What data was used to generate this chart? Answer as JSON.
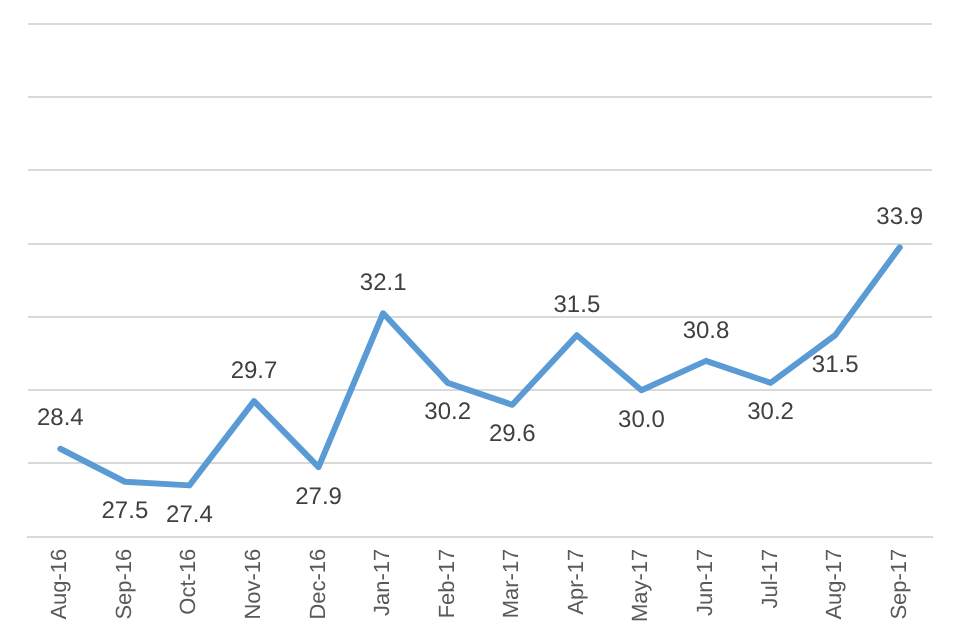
{
  "chart_data": {
    "type": "line",
    "categories": [
      "Aug-16",
      "Sep-16",
      "Oct-16",
      "Nov-16",
      "Dec-16",
      "Jan-17",
      "Feb-17",
      "Mar-17",
      "Apr-17",
      "May-17",
      "Jun-17",
      "Jul-17",
      "Aug-17",
      "Sep-17"
    ],
    "series": [
      {
        "color": "#5b9bd5",
        "values": [
          28.4,
          27.5,
          27.4,
          29.7,
          27.9,
          32.1,
          30.2,
          29.6,
          31.5,
          30.0,
          30.8,
          30.2,
          31.5,
          33.9
        ],
        "value_labels": [
          "28.4",
          "27.5",
          "27.4",
          "29.7",
          "27.9",
          "32.1",
          "30.2",
          "29.6",
          "31.5",
          "30.0",
          "30.8",
          "30.2",
          "31.5",
          "33.9"
        ]
      }
    ],
    "ylim": [
      26,
      40
    ],
    "yticks": [
      {
        "value": 26,
        "label": null
      },
      {
        "value": 28,
        "label": null
      },
      {
        "value": 30,
        "label": null
      },
      {
        "value": 32,
        "label": null
      },
      {
        "value": 34,
        "label": null
      },
      {
        "value": 36,
        "label": null
      },
      {
        "value": 38,
        "label": null
      },
      {
        "value": 40,
        "label": null
      }
    ],
    "tick_labels": "x",
    "grid": "y",
    "legend": false,
    "marker": "none",
    "line_style": "solid"
  }
}
